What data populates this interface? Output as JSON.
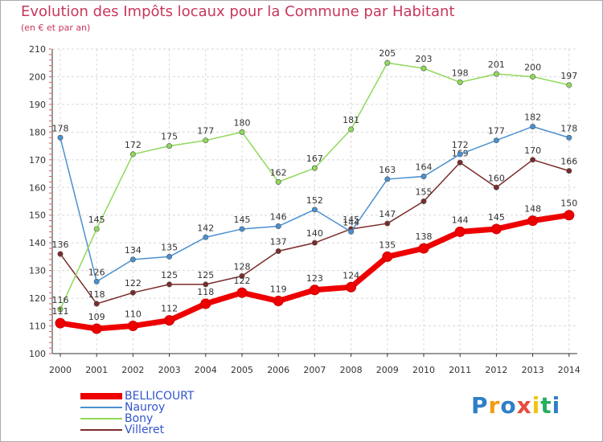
{
  "header": {
    "title": "Evolution des Impôts locaux pour la Commune par Habitant",
    "subtitle": "(en € et par an)"
  },
  "logo": {
    "letters": [
      "P",
      "r",
      "o",
      "x",
      "i",
      "t",
      "i"
    ],
    "colors": [
      "#2e7fc7",
      "#f39c12",
      "#2e7fc7",
      "#e74c3c",
      "#f1c40f",
      "#27ae60",
      "#2e7fc7"
    ]
  },
  "chart_data": {
    "type": "line",
    "title": "Evolution des Impôts locaux pour la Commune par Habitant",
    "subtitle": "(en € et par an)",
    "xlabel": "",
    "ylabel": "",
    "x": [
      "2000",
      "2001",
      "2002",
      "2003",
      "2004",
      "2005",
      "2006",
      "2007",
      "2008",
      "2009",
      "2010",
      "2011",
      "2012",
      "2013",
      "2014"
    ],
    "ylim": [
      100,
      210
    ],
    "yticks": [
      100,
      110,
      120,
      130,
      140,
      150,
      160,
      170,
      180,
      190,
      200,
      210
    ],
    "grid": true,
    "legend_position": "bottom-left",
    "series": [
      {
        "name": "Villeret",
        "color": "#7b2b2b",
        "values": [
          136,
          118,
          122,
          125,
          125,
          128,
          137,
          140,
          145,
          147,
          155,
          169,
          160,
          170,
          166
        ],
        "labels": [
          "136",
          "118",
          "122",
          "125",
          "125",
          "128",
          "137",
          "140",
          "145",
          "147",
          "155",
          "169",
          "160",
          "170",
          "166"
        ]
      },
      {
        "name": "Nauroy",
        "color": "#4a90d0",
        "values": [
          178,
          126,
          134,
          135,
          142,
          145,
          146,
          152,
          144,
          163,
          164,
          172,
          177,
          182,
          178
        ],
        "labels": [
          "178",
          "126",
          "134",
          "135",
          "142",
          "145",
          "146",
          "152",
          "144",
          "163",
          "164",
          "172",
          "177",
          "182",
          "178"
        ]
      },
      {
        "name": "Bony",
        "color": "#8fd95a",
        "values": [
          116,
          145,
          172,
          175,
          177,
          180,
          162,
          167,
          181,
          205,
          203,
          198,
          201,
          200,
          197
        ],
        "labels": [
          "116",
          "145",
          "172",
          "175",
          "177",
          "180",
          "162",
          "167",
          "181",
          "205",
          "203",
          "198",
          "201",
          "200",
          "197"
        ]
      },
      {
        "name": "BELLICOURT",
        "color": "#ee0000",
        "values": [
          111,
          109,
          110,
          112,
          118,
          122,
          119,
          123,
          124,
          135,
          138,
          144,
          145,
          148,
          150
        ],
        "labels": [
          "111",
          "109",
          "110",
          "112",
          "118",
          "122",
          "119",
          "123",
          "124",
          "135",
          "138",
          "144",
          "145",
          "148",
          "150"
        ]
      }
    ],
    "legend_order": [
      "BELLICOURT",
      "Nauroy",
      "Bony",
      "Villeret"
    ]
  }
}
